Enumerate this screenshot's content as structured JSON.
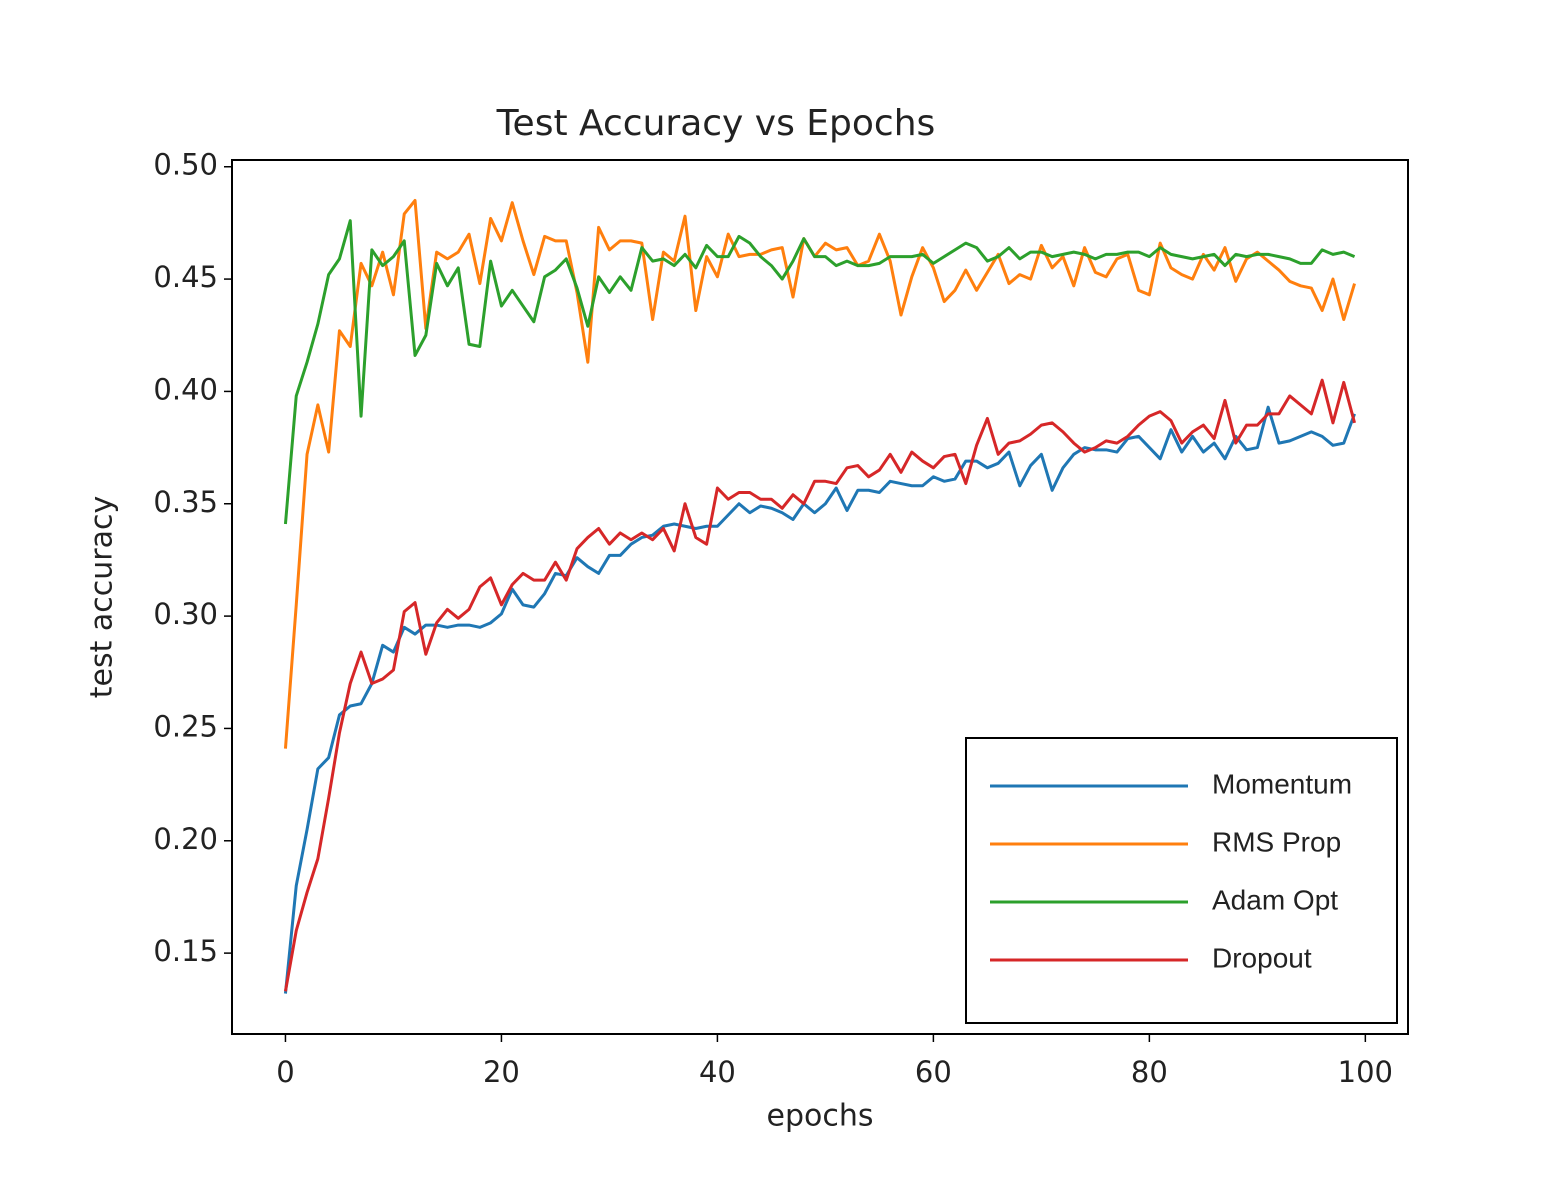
{
  "chart_data": {
    "type": "line",
    "title": "Test Accuracy vs Epochs",
    "x_label": "epochs",
    "y_label": "test accuracy",
    "x": [
      0,
      1,
      2,
      3,
      4,
      5,
      6,
      7,
      8,
      9,
      10,
      11,
      12,
      13,
      14,
      15,
      16,
      17,
      18,
      19,
      20,
      21,
      22,
      23,
      24,
      25,
      26,
      27,
      28,
      29,
      30,
      31,
      32,
      33,
      34,
      35,
      36,
      37,
      38,
      39,
      40,
      41,
      42,
      43,
      44,
      45,
      46,
      47,
      48,
      49,
      50,
      51,
      52,
      53,
      54,
      55,
      56,
      57,
      58,
      59,
      60,
      61,
      62,
      63,
      64,
      65,
      66,
      67,
      68,
      69,
      70,
      71,
      72,
      73,
      74,
      75,
      76,
      77,
      78,
      79,
      80,
      81,
      82,
      83,
      84,
      85,
      86,
      87,
      88,
      89,
      90,
      91,
      92,
      93,
      94,
      95,
      96,
      97,
      98,
      99
    ],
    "series": [
      {
        "name": "Momentum",
        "color": "#1f77b4",
        "values": [
          0.132,
          0.18,
          0.205,
          0.232,
          0.237,
          0.256,
          0.26,
          0.261,
          0.27,
          0.287,
          0.284,
          0.295,
          0.292,
          0.296,
          0.296,
          0.295,
          0.296,
          0.296,
          0.295,
          0.297,
          0.301,
          0.312,
          0.305,
          0.304,
          0.31,
          0.319,
          0.318,
          0.326,
          0.322,
          0.319,
          0.327,
          0.327,
          0.332,
          0.335,
          0.336,
          0.34,
          0.341,
          0.34,
          0.339,
          0.34,
          0.34,
          0.345,
          0.35,
          0.346,
          0.349,
          0.348,
          0.346,
          0.343,
          0.35,
          0.346,
          0.35,
          0.357,
          0.347,
          0.356,
          0.356,
          0.355,
          0.36,
          0.359,
          0.358,
          0.358,
          0.362,
          0.36,
          0.361,
          0.369,
          0.369,
          0.366,
          0.368,
          0.373,
          0.358,
          0.367,
          0.372,
          0.356,
          0.366,
          0.372,
          0.375,
          0.374,
          0.374,
          0.373,
          0.379,
          0.38,
          0.375,
          0.37,
          0.383,
          0.373,
          0.38,
          0.373,
          0.377,
          0.37,
          0.38,
          0.374,
          0.375,
          0.393,
          0.377,
          0.378,
          0.38,
          0.382,
          0.38,
          0.376,
          0.377,
          0.39
        ]
      },
      {
        "name": "RMS Prop",
        "color": "#ff7f0e",
        "values": [
          0.241,
          0.305,
          0.372,
          0.394,
          0.373,
          0.427,
          0.42,
          0.457,
          0.447,
          0.462,
          0.443,
          0.479,
          0.485,
          0.428,
          0.462,
          0.459,
          0.462,
          0.47,
          0.448,
          0.477,
          0.467,
          0.484,
          0.467,
          0.452,
          0.469,
          0.467,
          0.467,
          0.444,
          0.413,
          0.473,
          0.463,
          0.467,
          0.467,
          0.466,
          0.432,
          0.462,
          0.458,
          0.478,
          0.436,
          0.46,
          0.451,
          0.47,
          0.46,
          0.461,
          0.461,
          0.463,
          0.464,
          0.442,
          0.468,
          0.46,
          0.466,
          0.463,
          0.464,
          0.456,
          0.458,
          0.47,
          0.458,
          0.434,
          0.451,
          0.464,
          0.455,
          0.44,
          0.445,
          0.454,
          0.445,
          0.453,
          0.461,
          0.448,
          0.452,
          0.45,
          0.465,
          0.455,
          0.46,
          0.447,
          0.464,
          0.453,
          0.451,
          0.459,
          0.461,
          0.445,
          0.443,
          0.466,
          0.455,
          0.452,
          0.45,
          0.461,
          0.454,
          0.464,
          0.449,
          0.459,
          0.462,
          0.458,
          0.454,
          0.449,
          0.447,
          0.446,
          0.436,
          0.45,
          0.432,
          0.448
        ]
      },
      {
        "name": "Adam Opt",
        "color": "#2ca02c",
        "values": [
          0.341,
          0.398,
          0.413,
          0.43,
          0.452,
          0.459,
          0.476,
          0.389,
          0.463,
          0.456,
          0.46,
          0.467,
          0.416,
          0.425,
          0.457,
          0.447,
          0.455,
          0.421,
          0.42,
          0.458,
          0.438,
          0.445,
          0.438,
          0.431,
          0.451,
          0.454,
          0.459,
          0.446,
          0.429,
          0.451,
          0.444,
          0.451,
          0.445,
          0.464,
          0.458,
          0.459,
          0.456,
          0.461,
          0.455,
          0.465,
          0.46,
          0.46,
          0.469,
          0.466,
          0.46,
          0.456,
          0.45,
          0.458,
          0.468,
          0.46,
          0.46,
          0.456,
          0.458,
          0.456,
          0.456,
          0.457,
          0.46,
          0.46,
          0.46,
          0.461,
          0.457,
          0.46,
          0.463,
          0.466,
          0.464,
          0.458,
          0.46,
          0.464,
          0.459,
          0.462,
          0.462,
          0.46,
          0.461,
          0.462,
          0.461,
          0.459,
          0.461,
          0.461,
          0.462,
          0.462,
          0.46,
          0.464,
          0.461,
          0.46,
          0.459,
          0.46,
          0.461,
          0.456,
          0.461,
          0.46,
          0.461,
          0.461,
          0.46,
          0.459,
          0.457,
          0.457,
          0.463,
          0.461,
          0.462,
          0.46
        ]
      },
      {
        "name": "Dropout",
        "color": "#d62728",
        "values": [
          0.133,
          0.16,
          0.177,
          0.192,
          0.219,
          0.248,
          0.27,
          0.284,
          0.27,
          0.272,
          0.276,
          0.302,
          0.306,
          0.283,
          0.297,
          0.303,
          0.299,
          0.303,
          0.313,
          0.317,
          0.305,
          0.314,
          0.319,
          0.316,
          0.316,
          0.324,
          0.316,
          0.33,
          0.335,
          0.339,
          0.332,
          0.337,
          0.334,
          0.337,
          0.334,
          0.339,
          0.329,
          0.35,
          0.335,
          0.332,
          0.357,
          0.352,
          0.355,
          0.355,
          0.352,
          0.352,
          0.348,
          0.354,
          0.35,
          0.36,
          0.36,
          0.359,
          0.366,
          0.367,
          0.362,
          0.365,
          0.372,
          0.364,
          0.373,
          0.369,
          0.366,
          0.371,
          0.372,
          0.359,
          0.376,
          0.388,
          0.372,
          0.377,
          0.378,
          0.381,
          0.385,
          0.386,
          0.382,
          0.377,
          0.373,
          0.375,
          0.378,
          0.377,
          0.38,
          0.385,
          0.389,
          0.391,
          0.387,
          0.377,
          0.382,
          0.385,
          0.379,
          0.396,
          0.377,
          0.385,
          0.385,
          0.39,
          0.39,
          0.398,
          0.394,
          0.39,
          0.405,
          0.386,
          0.404,
          0.386
        ]
      }
    ],
    "xlim": [
      -4.95,
      103.95
    ],
    "ylim": [
      0.114,
      0.503
    ],
    "xticks": [
      0,
      20,
      40,
      60,
      80,
      100
    ],
    "yticks": [
      0.15,
      {
        "value": 0.2,
        "label": "0.20"
      },
      0.25,
      {
        "value": 0.3,
        "label": "0.30"
      },
      0.35,
      {
        "value": 0.4,
        "label": "0.40"
      },
      0.45,
      {
        "value": 0.5,
        "label": "0.50"
      }
    ],
    "grid": false,
    "legend": "lower right"
  }
}
